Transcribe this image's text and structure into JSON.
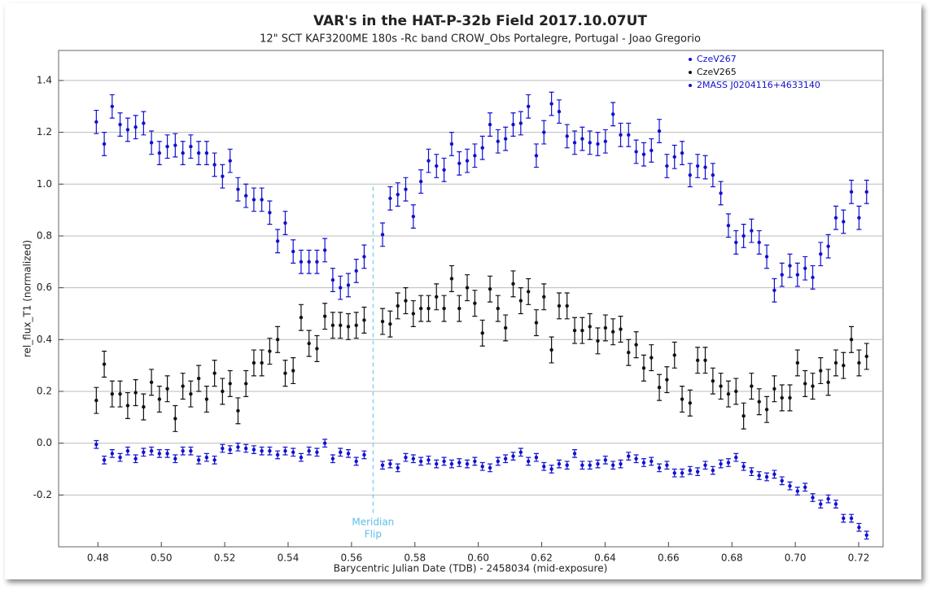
{
  "chart_data": {
    "type": "scatter",
    "title": "VAR's in the HAT-P-32b Field  2017.10.07UT",
    "subtitle": "12\" SCT KAF3200ME 180s -Rc band CROW_Obs Portalegre, Portugal - Joao Gregorio",
    "x_label": "Barycentric Julian Date (TDB) - 2458034 (mid-exposure)",
    "y_label": "rel_flux_T1 (normalized)",
    "xlim": [
      0.4676,
      0.7277
    ],
    "ylim": [
      -0.4,
      1.516
    ],
    "xticks": [
      0.48,
      {
        "value": 0.5,
        "label": "0.50"
      },
      0.52,
      0.54,
      0.56,
      0.58,
      {
        "value": 0.6,
        "label": "0.60"
      },
      0.62,
      0.64,
      0.66,
      0.68,
      {
        "value": 0.7,
        "label": "0.70"
      },
      0.72
    ],
    "yticks": [
      -0.2,
      {
        "value": 0,
        "label": "0.0"
      },
      0.2,
      0.4,
      0.6,
      0.8,
      {
        "value": 1,
        "label": "1.0"
      },
      1.2,
      1.4
    ],
    "grid": true,
    "legend": "upper right",
    "annotation": {
      "text": [
        "Meridian",
        "Flip"
      ],
      "x": 0.5668,
      "y_end": 0.99,
      "color": "#5bc0e8"
    },
    "x": [
      0.4795,
      0.482,
      0.4845,
      0.487,
      0.4894,
      0.4919,
      0.4944,
      0.4969,
      0.4994,
      0.5019,
      0.5044,
      0.5068,
      0.5093,
      0.5118,
      0.5143,
      0.5168,
      0.5193,
      0.5217,
      0.5242,
      0.5267,
      0.5292,
      0.5317,
      0.5342,
      0.5367,
      0.5391,
      0.5416,
      0.5441,
      0.5466,
      0.5491,
      0.5516,
      0.5541,
      0.5565,
      0.559,
      0.5615,
      0.564,
      0.5698,
      0.5722,
      0.5746,
      0.5771,
      0.5795,
      0.5819,
      0.5843,
      0.5868,
      0.5892,
      0.5916,
      0.594,
      0.5965,
      0.5989,
      0.6013,
      0.6037,
      0.6062,
      0.6086,
      0.611,
      0.6134,
      0.6158,
      0.6183,
      0.6207,
      0.6231,
      0.6255,
      0.628,
      0.6304,
      0.6328,
      0.6352,
      0.6377,
      0.6401,
      0.6425,
      0.6449,
      0.6474,
      0.6498,
      0.6522,
      0.6546,
      0.6571,
      0.6595,
      0.6619,
      0.6643,
      0.6668,
      0.6692,
      0.6716,
      0.674,
      0.6765,
      0.6789,
      0.6813,
      0.6837,
      0.6862,
      0.6886,
      0.691,
      0.6934,
      0.6958,
      0.6983,
      0.7007,
      0.7031,
      0.7055,
      0.708,
      0.7104,
      0.7128,
      0.7152,
      0.7177,
      0.7201,
      0.7225
    ],
    "series": [
      {
        "name": "CzeV267",
        "color": "#1010d0",
        "error": 0.045,
        "values": [
          1.24,
          1.155,
          1.3,
          1.23,
          1.21,
          1.22,
          1.235,
          1.16,
          1.12,
          1.145,
          1.15,
          1.12,
          1.145,
          1.12,
          1.12,
          1.075,
          1.03,
          1.09,
          0.98,
          0.955,
          0.94,
          0.94,
          0.89,
          0.78,
          0.85,
          0.74,
          0.7,
          0.7,
          0.7,
          0.745,
          0.63,
          0.6,
          0.61,
          0.665,
          0.72,
          0.805,
          0.945,
          0.96,
          0.98,
          0.875,
          1.01,
          1.09,
          1.07,
          1.055,
          1.155,
          1.08,
          1.09,
          1.11,
          1.14,
          1.23,
          1.165,
          1.175,
          1.23,
          1.235,
          1.3,
          1.11,
          1.2,
          1.31,
          1.28,
          1.185,
          1.16,
          1.175,
          1.16,
          1.155,
          1.165,
          1.27,
          1.19,
          1.19,
          1.125,
          1.115,
          1.13,
          1.205,
          1.07,
          1.105,
          1.12,
          1.035,
          1.07,
          1.065,
          1.035,
          0.965,
          0.84,
          0.775,
          0.8,
          0.82,
          0.775,
          0.72,
          0.59,
          0.65,
          0.685,
          0.65,
          0.675,
          0.64,
          0.73,
          0.76,
          0.87,
          0.855,
          0.97,
          0.87,
          0.97
        ]
      },
      {
        "name": "CzeV265",
        "color": "#111111",
        "error": 0.05,
        "values": [
          0.165,
          0.305,
          0.19,
          0.19,
          0.145,
          0.195,
          0.14,
          0.235,
          0.17,
          0.21,
          0.095,
          0.22,
          0.19,
          0.25,
          0.17,
          0.27,
          0.2,
          0.23,
          0.125,
          0.23,
          0.31,
          0.31,
          0.355,
          0.4,
          0.27,
          0.28,
          0.485,
          0.385,
          0.365,
          0.49,
          0.455,
          0.455,
          0.45,
          0.455,
          0.475,
          0.47,
          0.46,
          0.53,
          0.55,
          0.5,
          0.52,
          0.52,
          0.565,
          0.52,
          0.635,
          0.52,
          0.6,
          0.54,
          0.425,
          0.595,
          0.52,
          0.445,
          0.615,
          0.55,
          0.585,
          0.465,
          0.565,
          0.36,
          0.53,
          0.53,
          0.435,
          0.435,
          0.45,
          0.395,
          0.445,
          0.43,
          0.44,
          0.35,
          0.38,
          0.29,
          0.33,
          0.215,
          0.245,
          0.34,
          0.17,
          0.155,
          0.32,
          0.32,
          0.24,
          0.22,
          0.19,
          0.2,
          0.105,
          0.22,
          0.16,
          0.13,
          0.21,
          0.175,
          0.175,
          0.31,
          0.23,
          0.22,
          0.28,
          0.235,
          0.31,
          0.3,
          0.4,
          0.31,
          0.335
        ]
      },
      {
        "name": "2MASS J0204116+4633140",
        "color": "#1010d0",
        "error": 0.015,
        "values": [
          -0.005,
          -0.065,
          -0.04,
          -0.055,
          -0.03,
          -0.06,
          -0.035,
          -0.03,
          -0.04,
          -0.04,
          -0.06,
          -0.03,
          -0.03,
          -0.065,
          -0.055,
          -0.065,
          -0.02,
          -0.025,
          -0.015,
          -0.02,
          -0.025,
          -0.03,
          -0.03,
          -0.045,
          -0.03,
          -0.035,
          -0.055,
          -0.03,
          -0.035,
          0.0,
          -0.06,
          -0.035,
          -0.04,
          -0.07,
          -0.045,
          -0.085,
          -0.08,
          -0.095,
          -0.055,
          -0.06,
          -0.07,
          -0.065,
          -0.08,
          -0.07,
          -0.08,
          -0.075,
          -0.08,
          -0.07,
          -0.09,
          -0.095,
          -0.07,
          -0.06,
          -0.05,
          -0.035,
          -0.07,
          -0.055,
          -0.09,
          -0.1,
          -0.08,
          -0.085,
          -0.04,
          -0.085,
          -0.085,
          -0.08,
          -0.065,
          -0.085,
          -0.08,
          -0.05,
          -0.06,
          -0.075,
          -0.07,
          -0.095,
          -0.085,
          -0.115,
          -0.115,
          -0.105,
          -0.11,
          -0.085,
          -0.105,
          -0.08,
          -0.075,
          -0.055,
          -0.09,
          -0.11,
          -0.125,
          -0.13,
          -0.12,
          -0.145,
          -0.165,
          -0.185,
          -0.17,
          -0.21,
          -0.235,
          -0.215,
          -0.235,
          -0.29,
          -0.29,
          -0.325,
          -0.355
        ]
      }
    ]
  }
}
